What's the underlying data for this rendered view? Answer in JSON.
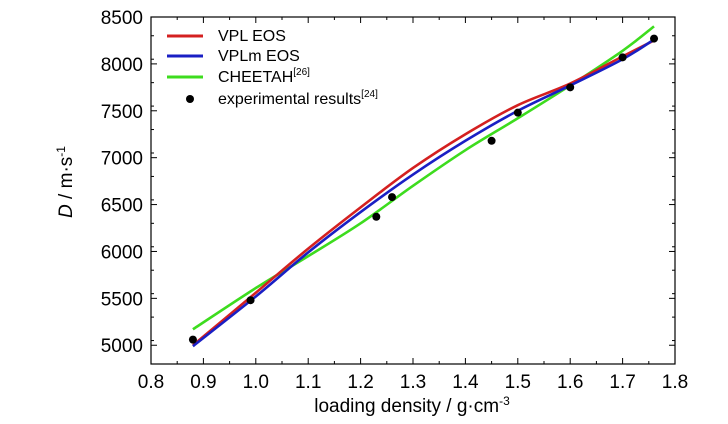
{
  "chart_data": {
    "type": "line",
    "xlabel": "loading density / g·cm",
    "xlabel_sup": "-3",
    "ylabel_italic": "D",
    "ylabel": " / m·s",
    "ylabel_sup": "-1",
    "xlim": [
      0.8,
      1.8
    ],
    "ylim": [
      4800,
      8500
    ],
    "xticks": [
      "0.8",
      "0.9",
      "1.0",
      "1.1",
      "1.2",
      "1.3",
      "1.4",
      "1.5",
      "1.6",
      "1.7",
      "1.8"
    ],
    "yticks": [
      "5000",
      "5500",
      "6000",
      "6500",
      "7000",
      "7500",
      "8000",
      "8500"
    ],
    "legend_position": "top-left",
    "series": [
      {
        "name": "VPL EOS",
        "kind": "line",
        "color": "#d42020",
        "x": [
          0.88,
          1.0,
          1.1,
          1.2,
          1.3,
          1.4,
          1.5,
          1.6,
          1.7,
          1.76
        ],
        "y": [
          5000,
          5560,
          6030,
          6470,
          6890,
          7250,
          7560,
          7790,
          8080,
          8250
        ]
      },
      {
        "name": "VPLm EOS",
        "kind": "line",
        "color": "#1a1fc4",
        "x": [
          0.88,
          1.0,
          1.1,
          1.2,
          1.3,
          1.4,
          1.5,
          1.6,
          1.7,
          1.76
        ],
        "y": [
          4990,
          5520,
          5990,
          6420,
          6820,
          7180,
          7500,
          7770,
          8050,
          8260
        ]
      },
      {
        "name": "CHEETAH",
        "name_sup": "[26]",
        "kind": "line",
        "color": "#3ddc1e",
        "x": [
          0.88,
          1.0,
          1.1,
          1.2,
          1.3,
          1.4,
          1.5,
          1.6,
          1.7,
          1.76
        ],
        "y": [
          5170,
          5610,
          5950,
          6300,
          6700,
          7080,
          7420,
          7770,
          8140,
          8400
        ]
      },
      {
        "name": "experimental results",
        "name_sup": "[24]",
        "kind": "scatter",
        "color": "#000000",
        "x": [
          0.88,
          0.99,
          1.23,
          1.26,
          1.45,
          1.5,
          1.6,
          1.7,
          1.76
        ],
        "y": [
          5060,
          5480,
          6370,
          6580,
          7180,
          7480,
          7750,
          8070,
          8270
        ]
      }
    ]
  }
}
